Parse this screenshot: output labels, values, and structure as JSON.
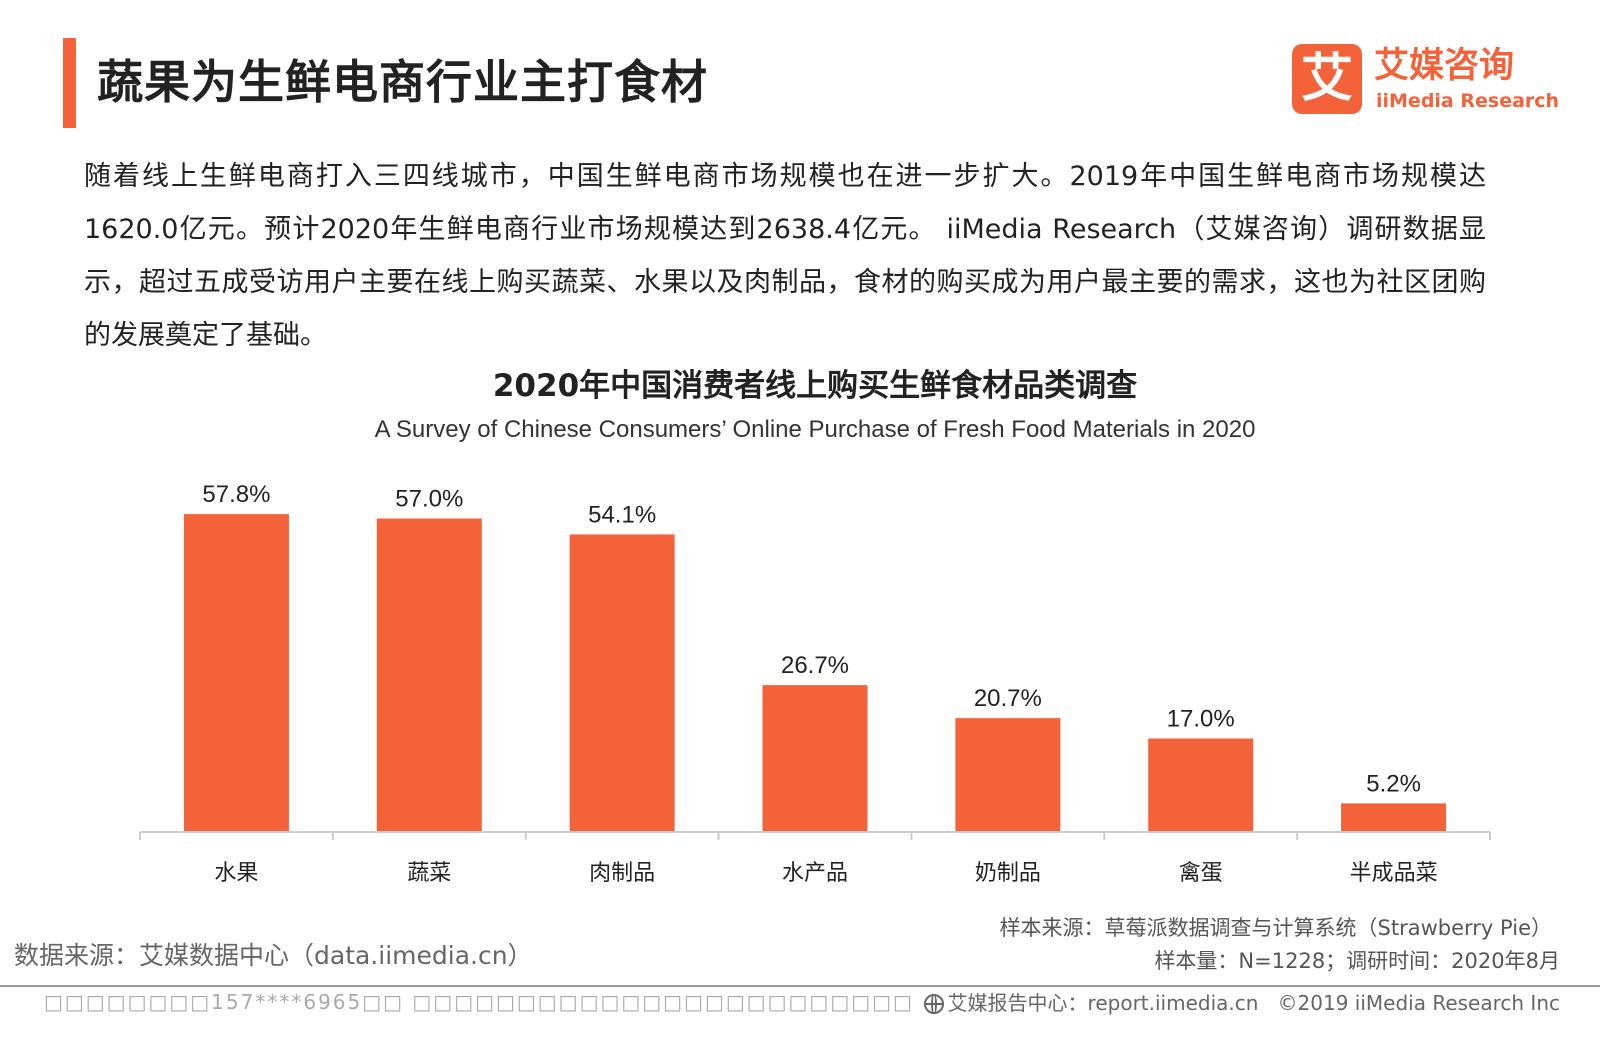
{
  "colors": {
    "accent": "#f4623a",
    "bar": "#f4623a",
    "axis": "#cccccc"
  },
  "header": {
    "title": "蔬果为生鲜电商行业主打食材",
    "logo_cn": "艾媒咨询",
    "logo_en": "iiMedia Research",
    "logo_glyph": "艾"
  },
  "intro": "随着线上生鲜电商打入三四线城市，中国生鲜电商市场规模也在进一步扩大。2019年中国生鲜电商市场规模达1620.0亿元。预计2020年生鲜电商行业市场规模达到2638.4亿元。 iiMedia Research（艾媒咨询）调研数据显示，超过五成受访用户主要在线上购买蔬菜、水果以及肉制品，食材的购买成为用户最主要的需求，这也为社区团购的发展奠定了基础。",
  "chart_data": {
    "type": "bar",
    "title": "2020年中国消费者线上购买生鲜食材品类调查",
    "subtitle": "A Survey of Chinese Consumers’  Online Purchase of Fresh Food Materials in 2020",
    "categories": [
      "水果",
      "蔬菜",
      "肉制品",
      "水产品",
      "奶制品",
      "禽蛋",
      "半成品菜"
    ],
    "values": [
      57.8,
      57.0,
      54.1,
      26.7,
      20.7,
      17.0,
      5.2
    ],
    "value_labels": [
      "57.8%",
      "57.0%",
      "54.1%",
      "26.7%",
      "20.7%",
      "17.0%",
      "5.2%"
    ],
    "ylim": [
      0,
      60
    ],
    "grid": false,
    "legend": "none"
  },
  "footer": {
    "source": "数据来源：艾媒数据中心（data.iimedia.cn）",
    "sample_source": "样本来源：草莓派数据调查与计算系统（Strawberry Pie）",
    "sample_size": "样本量：N=1228；调研时间：2020年8月",
    "watermark": "□□□□□□□□157****6965□□ □□□□□□□□□□□□□□□□□□□□□□□□",
    "report_center": "艾媒报告中心：report.iimedia.cn",
    "copyright": "©2019  iiMedia Research  Inc"
  }
}
